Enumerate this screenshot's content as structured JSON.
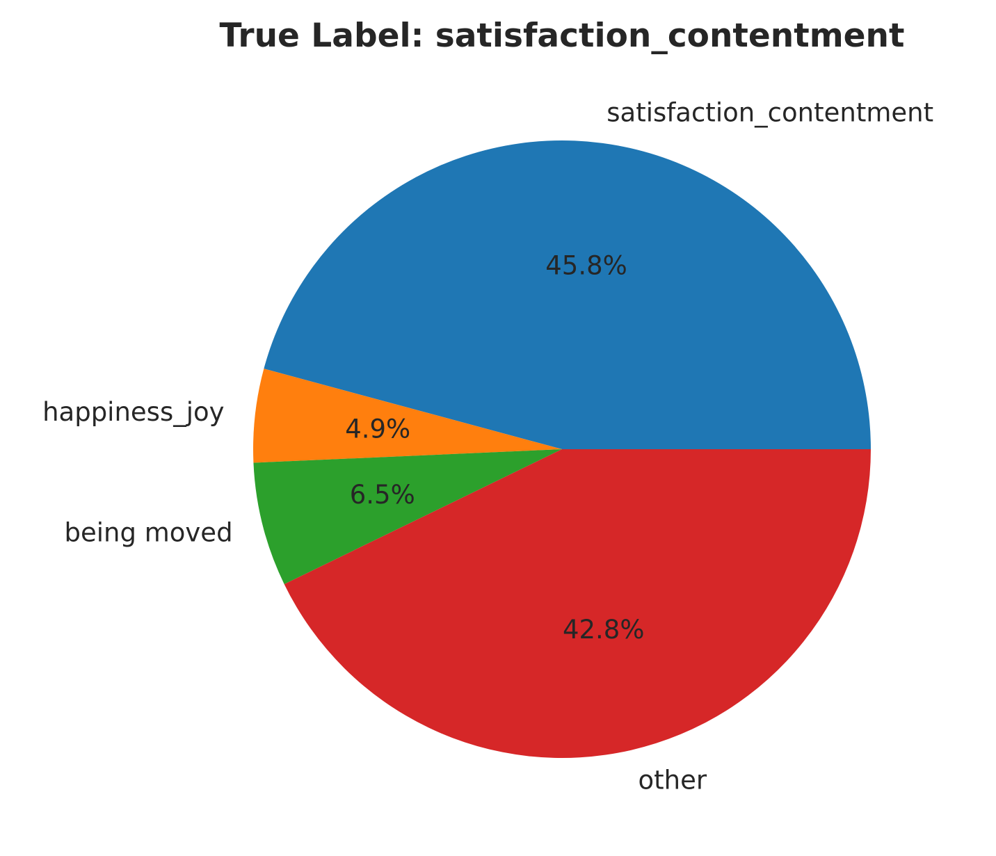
{
  "chart_data": {
    "type": "pie",
    "title": "True Label: satisfaction_contentment",
    "categories": [
      "satisfaction_contentment",
      "happiness_joy",
      "being moved",
      "other"
    ],
    "values": [
      45.8,
      4.9,
      6.5,
      42.8
    ],
    "percent_labels": [
      "45.8%",
      "4.9%",
      "6.5%",
      "42.8%"
    ],
    "colors": [
      "#1f77b4",
      "#ff7f0e",
      "#2ca02c",
      "#d62728"
    ],
    "start_angle_deg": 0,
    "direction": "counterclockwise",
    "legend": "none"
  }
}
